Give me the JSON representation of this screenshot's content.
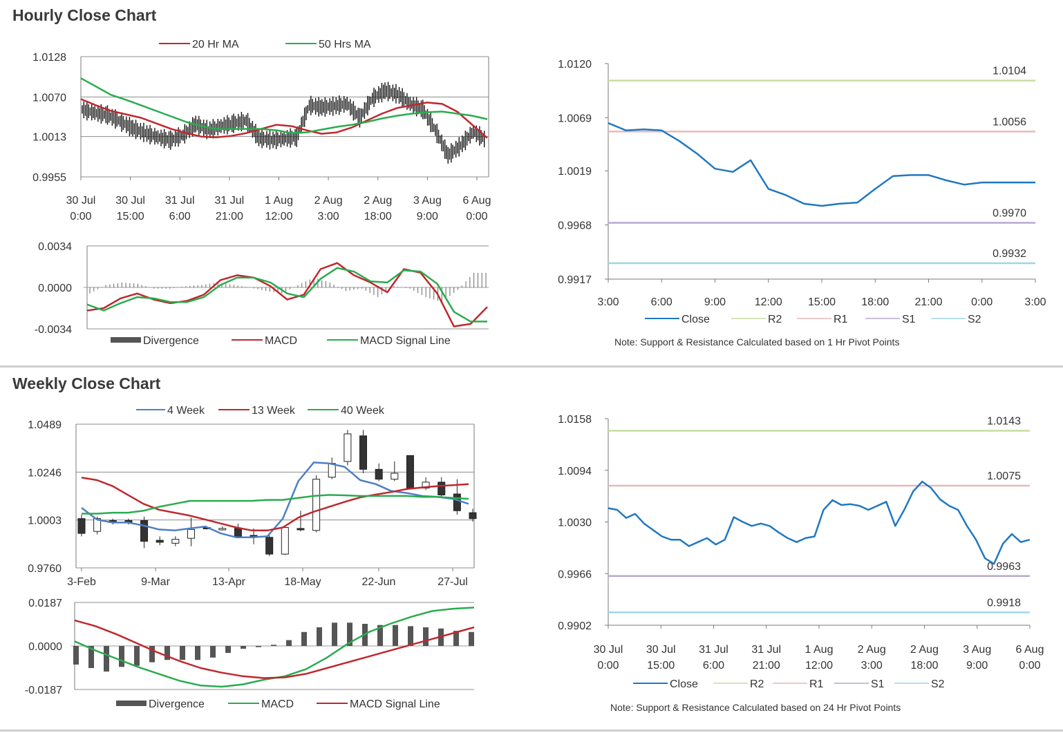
{
  "hourly_title": "Hourly Close Chart",
  "weekly_title": "Weekly Close Chart",
  "chart_data": [
    {
      "id": "hourly-price",
      "type": "line",
      "y_ticks": [
        "1.0128",
        "1.0070",
        "1.0013",
        "0.9955"
      ],
      "ylim": [
        0.9955,
        1.0128
      ],
      "x_ticks": [
        [
          "30 Jul",
          "0:00"
        ],
        [
          "30 Jul",
          "15:00"
        ],
        [
          "31 Jul",
          "6:00"
        ],
        [
          "31 Jul",
          "21:00"
        ],
        [
          "1 Aug",
          "12:00"
        ],
        [
          "2 Aug",
          "3:00"
        ],
        [
          "2 Aug",
          "18:00"
        ],
        [
          "3 Aug",
          "9:00"
        ],
        [
          "6 Aug",
          "0:00"
        ]
      ],
      "legend": [
        "20 Hr MA",
        "50 Hrs MA"
      ],
      "series": [
        {
          "name": "20 Hr MA",
          "color": "#c0272d",
          "values": [
            1.0067,
            1.0058,
            1.005,
            1.0045,
            1.004,
            1.0032,
            1.0024,
            1.0018,
            1.0013,
            1.0012,
            1.0014,
            1.0018,
            1.0024,
            1.003,
            1.0028,
            1.0022,
            1.0017,
            1.0019,
            1.0026,
            1.0036,
            1.0046,
            1.0054,
            1.0058,
            1.0062,
            1.006,
            1.0049,
            1.003,
            1.0011
          ]
        },
        {
          "name": "50 Hrs MA",
          "color": "#2aab4f",
          "values": [
            1.0097,
            1.0085,
            1.0073,
            1.0066,
            1.0058,
            1.005,
            1.0042,
            1.0034,
            1.0028,
            1.0024,
            1.0024,
            1.0024,
            1.0024,
            1.0022,
            1.0018,
            1.0019,
            1.0023,
            1.0027,
            1.003,
            1.0034,
            1.0039,
            1.0043,
            1.0046,
            1.0048,
            1.0049,
            1.0046,
            1.0043,
            1.0038
          ]
        }
      ],
      "close": [
        1.0052,
        1.0047,
        1.0044,
        1.0035,
        1.0025,
        1.0018,
        1.0012,
        1.0008,
        1.0015,
        1.0031,
        1.0022,
        1.0028,
        1.0032,
        1.0036,
        1.0011,
        1.0008,
        1.001,
        1.0012,
        1.0058,
        1.0055,
        1.0057,
        1.006,
        1.004,
        1.0068,
        1.0079,
        1.0074,
        1.006,
        1.0052,
        1.0022,
        0.9986,
        1.0,
        1.002,
        1.0008
      ]
    },
    {
      "id": "hourly-macd",
      "type": "line",
      "y_ticks": [
        "0.0034",
        "0.0000",
        "-0.0034"
      ],
      "ylim": [
        -0.0034,
        0.0034
      ],
      "legend": [
        "Divergence",
        "MACD",
        "MACD Signal Line"
      ],
      "series": [
        {
          "name": "MACD",
          "color": "#c0272d",
          "values": [
            -0.0019,
            -0.0017,
            -0.0009,
            -0.0005,
            -0.001,
            -0.0013,
            -0.0011,
            -0.0006,
            0.0006,
            0.001,
            0.0008,
            0.0001,
            -0.001,
            -0.0006,
            0.0015,
            0.002,
            0.001,
            0.0004,
            -0.0004,
            0.0015,
            0.0012,
            -0.0005,
            -0.0032,
            -0.003,
            -0.0016
          ]
        },
        {
          "name": "MACD Signal Line",
          "color": "#2aab4f",
          "values": [
            -0.0014,
            -0.0019,
            -0.0013,
            -0.0008,
            -0.0009,
            -0.0012,
            -0.0012,
            -0.0008,
            0.0002,
            0.0008,
            0.0008,
            0.0004,
            -0.0005,
            -0.0008,
            0.0007,
            0.0016,
            0.0013,
            0.0005,
            0.0004,
            0.0014,
            0.0013,
            0.0003,
            -0.002,
            -0.0028,
            -0.0028
          ]
        },
        {
          "name": "Divergence",
          "color": "#555555",
          "values": [
            -0.0005,
            0.0002,
            0.0004,
            0.0003,
            -0.0001,
            -0.0001,
            0.0001,
            0.0002,
            0.0004,
            0.0002,
            0.0,
            -0.0003,
            -0.0005,
            0.0002,
            0.0008,
            0.0004,
            -0.0003,
            -0.0001,
            -0.0008,
            0.0001,
            -0.0001,
            -0.0008,
            -0.0012,
            -0.0002,
            0.0012
          ]
        }
      ]
    },
    {
      "id": "hourly-sr",
      "type": "line",
      "y_ticks": [
        "1.0120",
        "1.0069",
        "1.0019",
        "0.9968",
        "0.9917"
      ],
      "ylim": [
        0.9917,
        1.012
      ],
      "x_ticks": [
        "3:00",
        "6:00",
        "9:00",
        "12:00",
        "15:00",
        "18:00",
        "21:00",
        "0:00",
        "3:00"
      ],
      "legend": [
        "Close",
        "R2",
        "R1",
        "S1",
        "S2"
      ],
      "levels": [
        {
          "name": "R2",
          "value": 1.0104,
          "label": "1.0104",
          "color": "#c6dd9f"
        },
        {
          "name": "R1",
          "value": 1.0056,
          "label": "1.0056",
          "color": "#eab7b7"
        },
        {
          "name": "S1",
          "value": 0.997,
          "label": "0.9970",
          "color": "#b9a7cf"
        },
        {
          "name": "S2",
          "value": 0.9932,
          "label": "0.9932",
          "color": "#9fd6e8"
        }
      ],
      "close": {
        "name": "Close",
        "color": "#1f78c1",
        "x": [
          0,
          1,
          2,
          3,
          4,
          5,
          6,
          7,
          8,
          9,
          10,
          11,
          12,
          13,
          14,
          15,
          16,
          17,
          18,
          19,
          20,
          21,
          22,
          23,
          24
        ],
        "values": [
          1.0064,
          1.0057,
          1.0058,
          1.0057,
          1.0047,
          1.0035,
          1.0021,
          1.0018,
          1.0029,
          1.0002,
          0.9996,
          0.9988,
          0.9986,
          0.9988,
          0.9989,
          1.0002,
          1.0014,
          1.0015,
          1.0015,
          1.001,
          1.0006,
          1.0008,
          1.0008,
          1.0008,
          1.0008
        ]
      }
    },
    {
      "id": "weekly-price",
      "type": "line",
      "y_ticks": [
        "1.0489",
        "1.0246",
        "1.0003",
        "0.9760"
      ],
      "ylim": [
        0.976,
        1.0489
      ],
      "x_ticks": [
        "3-Feb",
        "9-Mar",
        "13-Apr",
        "18-May",
        "22-Jun",
        "27-Jul"
      ],
      "legend": [
        "4 Week",
        "13 Week",
        "40 Week"
      ],
      "series": [
        {
          "name": "4 Week",
          "color": "#4d7fc4",
          "values": [
            1.0065,
            1.0005,
            0.999,
            0.999,
            0.9975,
            0.9955,
            0.995,
            0.996,
            0.997,
            0.9935,
            0.9915,
            0.9915,
            0.992,
            1.001,
            1.02,
            1.0295,
            1.029,
            1.0272,
            1.0205,
            1.0185,
            1.015,
            1.014,
            1.0125,
            1.012,
            1.011,
            1.0085
          ]
        },
        {
          "name": "13 Week",
          "color": "#c0272d",
          "values": [
            1.0218,
            1.0205,
            1.0175,
            1.013,
            1.0085,
            1.0055,
            1.004,
            1.0025,
            1.0005,
            0.9985,
            0.9965,
            0.995,
            0.995,
            0.9965,
            1.0015,
            1.0045,
            1.007,
            1.0095,
            1.0118,
            1.0132,
            1.0145,
            1.016,
            1.0168,
            1.0175,
            1.018,
            1.0185
          ]
        },
        {
          "name": "40 Week",
          "color": "#2aab4f",
          "values": [
            1.0035,
            1.0035,
            1.004,
            1.004,
            1.005,
            1.007,
            1.0085,
            1.01,
            1.01,
            1.01,
            1.01,
            1.01,
            1.0105,
            1.0105,
            1.0115,
            1.0125,
            1.013,
            1.0128,
            1.0125,
            1.0125,
            1.0125,
            1.0125,
            1.012,
            1.012,
            1.0115,
            1.011
          ]
        }
      ],
      "candles": [
        [
          1.001,
          0.9935,
          1.003,
          0.992
        ],
        [
          0.9945,
          1.001,
          1.002,
          0.993
        ],
        [
          1.0,
          0.999,
          1.001,
          0.998
        ],
        [
          1.0,
          0.999,
          1.001,
          0.998
        ],
        [
          1.0,
          0.9895,
          1.002,
          0.986
        ],
        [
          0.99,
          0.989,
          0.992,
          0.9875
        ],
        [
          0.9885,
          0.9905,
          0.992,
          0.987
        ],
        [
          0.991,
          0.9955,
          1.0015,
          0.987
        ],
        [
          0.9965,
          0.996,
          0.997,
          0.9955
        ],
        [
          0.996,
          0.996,
          0.997,
          0.995
        ],
        [
          0.996,
          0.992,
          0.9985,
          0.991
        ],
        [
          0.9925,
          0.9915,
          0.996,
          0.988
        ],
        [
          0.9915,
          0.983,
          0.9935,
          0.982
        ],
        [
          0.983,
          0.9965,
          0.997,
          0.9825
        ],
        [
          0.996,
          0.9955,
          1.005,
          0.9945
        ],
        [
          0.995,
          1.021,
          1.023,
          0.994
        ],
        [
          1.022,
          1.029,
          1.032,
          1.021
        ],
        [
          1.03,
          1.044,
          1.046,
          1.028
        ],
        [
          1.043,
          1.026,
          1.046,
          1.024
        ],
        [
          1.026,
          1.021,
          1.029,
          1.02
        ],
        [
          1.021,
          1.024,
          1.03,
          1.02
        ],
        [
          1.033,
          1.0165,
          1.033,
          1.016
        ],
        [
          1.0165,
          1.0195,
          1.022,
          1.0155
        ],
        [
          1.0195,
          1.013,
          1.022,
          1.012
        ],
        [
          1.0135,
          1.005,
          1.021,
          1.003
        ],
        [
          1.004,
          1.001,
          1.006,
          0.9995
        ]
      ]
    },
    {
      "id": "weekly-macd",
      "type": "line",
      "y_ticks": [
        "0.0187",
        "0.0000",
        "-0.0187"
      ],
      "ylim": [
        -0.0187,
        0.0187
      ],
      "legend": [
        "Divergence",
        "MACD",
        "MACD Signal Line"
      ],
      "series": [
        {
          "name": "MACD",
          "color": "#2aab4f",
          "values": [
            0.002,
            -0.002,
            -0.0055,
            -0.009,
            -0.012,
            -0.015,
            -0.017,
            -0.0175,
            -0.0165,
            -0.0145,
            -0.013,
            -0.01,
            -0.005,
            0.001,
            0.006,
            0.0095,
            0.0125,
            0.015,
            0.016,
            0.0165
          ]
        },
        {
          "name": "MACD Signal Line",
          "color": "#c0272d",
          "values": [
            0.011,
            0.0085,
            0.005,
            0.001,
            -0.003,
            -0.0065,
            -0.0095,
            -0.0115,
            -0.013,
            -0.0138,
            -0.0135,
            -0.012,
            -0.0095,
            -0.007,
            -0.0045,
            -0.002,
            0.0005,
            0.003,
            0.0055,
            0.008
          ]
        },
        {
          "name": "Divergence",
          "color": "#555555",
          "values": [
            -0.008,
            -0.0095,
            -0.011,
            -0.009,
            -0.0085,
            -0.007,
            -0.006,
            -0.006,
            -0.006,
            -0.005,
            -0.003,
            -0.0012,
            -0.0005,
            0.0005,
            0.0025,
            0.006,
            0.008,
            0.01,
            0.01,
            0.0095,
            0.009,
            0.009,
            0.0085,
            0.008,
            0.0075,
            0.0065,
            0.006
          ]
        }
      ]
    },
    {
      "id": "weekly-sr",
      "type": "line",
      "y_ticks": [
        "1.0158",
        "1.0094",
        "1.0030",
        "0.9966",
        "0.9902"
      ],
      "ylim": [
        0.9902,
        1.0158
      ],
      "x_ticks": [
        [
          "30 Jul",
          "0:00"
        ],
        [
          "30 Jul",
          "15:00"
        ],
        [
          "31 Jul",
          "6:00"
        ],
        [
          "31 Jul",
          "21:00"
        ],
        [
          "1 Aug",
          "12:00"
        ],
        [
          "2 Aug",
          "3:00"
        ],
        [
          "2 Aug",
          "18:00"
        ],
        [
          "3 Aug",
          "9:00"
        ],
        [
          "6 Aug",
          "0:00"
        ]
      ],
      "legend": [
        "Close",
        "R2",
        "R1",
        "S1",
        "S2"
      ],
      "levels": [
        {
          "name": "R2",
          "value": 1.0143,
          "label": "1.0143",
          "color": "#c6dd9f"
        },
        {
          "name": "R1",
          "value": 1.0075,
          "label": "1.0075",
          "color": "#eab7b7"
        },
        {
          "name": "S1",
          "value": 0.9963,
          "label": "0.9963",
          "color": "#b9a7cf"
        },
        {
          "name": "S2",
          "value": 0.9918,
          "label": "0.9918",
          "color": "#9fd6e8"
        }
      ],
      "close": {
        "name": "Close",
        "color": "#1f78c1",
        "values": [
          1.0047,
          1.0045,
          1.0035,
          1.004,
          1.0028,
          1.002,
          1.0012,
          1.0008,
          1.0008,
          1.0,
          1.0005,
          1.001,
          1.0002,
          1.0008,
          1.0036,
          1.003,
          1.0025,
          1.0028,
          1.0025,
          1.0017,
          1.001,
          1.0005,
          1.001,
          1.0012,
          1.0045,
          1.0057,
          1.0051,
          1.0052,
          1.005,
          1.0045,
          1.005,
          1.0055,
          1.0025,
          1.0045,
          1.0068,
          1.008,
          1.0072,
          1.0058,
          1.005,
          1.0045,
          1.0025,
          1.0008,
          0.9985,
          0.9978,
          1.0003,
          1.0015,
          1.0005,
          1.0008
        ]
      }
    }
  ]
}
